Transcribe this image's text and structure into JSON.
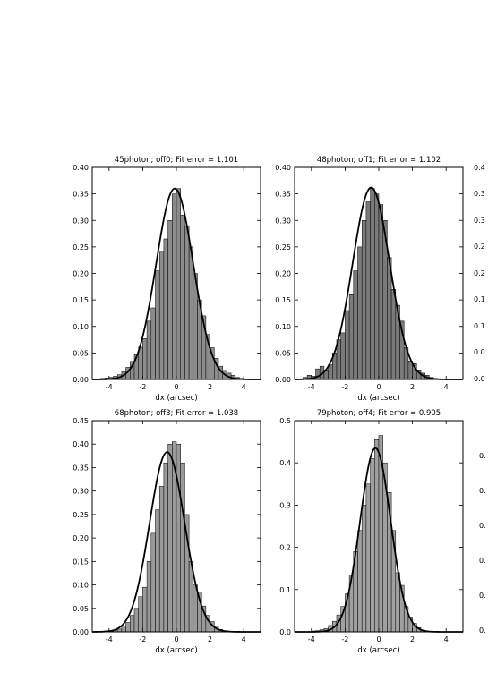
{
  "chart_data": [
    {
      "type": "bar",
      "title": "45photon; off0; Fit error = 1.101",
      "xlabel": "dx (arcsec)",
      "ylabel": "",
      "xlim": [
        -5,
        5
      ],
      "ylim": [
        0,
        0.4
      ],
      "xticks": [
        "-4",
        "-2",
        "0",
        "2",
        "4"
      ],
      "yticks": [
        "0.00",
        "0.05",
        "0.10",
        "0.15",
        "0.20",
        "0.25",
        "0.30",
        "0.35",
        "0.40"
      ],
      "bin_width": 0.25,
      "bins_start": [
        -4.5,
        -4.25,
        -4.0,
        -3.75,
        -3.5,
        -3.25,
        -3.0,
        -2.75,
        -2.5,
        -2.25,
        -2.0,
        -1.75,
        -1.5,
        -1.25,
        -1.0,
        -0.75,
        -0.5,
        -0.25,
        0.0,
        0.25,
        0.5,
        0.75,
        1.0,
        1.25,
        1.5,
        1.75,
        2.0,
        2.25,
        2.5,
        2.75,
        3.0,
        3.25,
        3.5,
        3.75
      ],
      "values": [
        0.002,
        0.003,
        0.004,
        0.006,
        0.009,
        0.015,
        0.023,
        0.034,
        0.047,
        0.061,
        0.077,
        0.11,
        0.135,
        0.205,
        0.24,
        0.265,
        0.3,
        0.35,
        0.36,
        0.31,
        0.29,
        0.25,
        0.2,
        0.15,
        0.12,
        0.085,
        0.06,
        0.04,
        0.025,
        0.017,
        0.012,
        0.008,
        0.004,
        0.002
      ],
      "fit_curve": {
        "type": "gaussian",
        "amplitude": 0.36,
        "mean": -0.1,
        "sigma": 1.1
      }
    },
    {
      "type": "bar",
      "title": "48photon; off1; Fit error = 1.102",
      "xlabel": "dx (arcsec)",
      "ylabel": "",
      "xlim": [
        -5,
        5
      ],
      "ylim": [
        0,
        0.4
      ],
      "xticks": [
        "-4",
        "-2",
        "0",
        "2",
        "4"
      ],
      "yticks": [
        "0.00",
        "0.05",
        "0.10",
        "0.15",
        "0.20",
        "0.25",
        "0.30",
        "0.35",
        "0.40"
      ],
      "bin_width": 0.25,
      "bins_start": [
        -4.5,
        -4.25,
        -4.0,
        -3.75,
        -3.5,
        -3.25,
        -3.0,
        -2.75,
        -2.5,
        -2.25,
        -2.0,
        -1.75,
        -1.5,
        -1.25,
        -1.0,
        -0.75,
        -0.5,
        -0.25,
        0.0,
        0.25,
        0.5,
        0.75,
        1.0,
        1.25,
        1.5,
        1.75,
        2.0,
        2.25,
        2.5,
        2.75,
        3.0,
        3.25
      ],
      "values": [
        0.004,
        0.008,
        0.006,
        0.02,
        0.025,
        0.018,
        0.028,
        0.05,
        0.075,
        0.088,
        0.13,
        0.16,
        0.205,
        0.25,
        0.3,
        0.335,
        0.36,
        0.35,
        0.33,
        0.3,
        0.23,
        0.17,
        0.14,
        0.11,
        0.06,
        0.035,
        0.03,
        0.018,
        0.012,
        0.008,
        0.004,
        0.002
      ],
      "fit_curve": {
        "type": "gaussian",
        "amplitude": 0.362,
        "mean": -0.45,
        "sigma": 1.1
      }
    },
    {
      "type": "bar",
      "title": "68photon; off3; Fit error = 1.038",
      "xlabel": "dx (arcsec)",
      "ylabel": "",
      "xlim": [
        -5,
        5
      ],
      "ylim": [
        0,
        0.45
      ],
      "xticks": [
        "-4",
        "-2",
        "0",
        "2",
        "4"
      ],
      "yticks": [
        "0.00",
        "0.05",
        "0.10",
        "0.15",
        "0.20",
        "0.25",
        "0.30",
        "0.35",
        "0.40",
        "0.45"
      ],
      "bin_width": 0.25,
      "bins_start": [
        -4.5,
        -4.25,
        -4.0,
        -3.75,
        -3.5,
        -3.25,
        -3.0,
        -2.75,
        -2.5,
        -2.25,
        -2.0,
        -1.75,
        -1.5,
        -1.25,
        -1.0,
        -0.75,
        -0.5,
        -0.25,
        0.0,
        0.25,
        0.5,
        0.75,
        1.0,
        1.25,
        1.5,
        1.75,
        2.0,
        2.25,
        2.5
      ],
      "values": [
        0.001,
        0.002,
        0.003,
        0.004,
        0.006,
        0.012,
        0.02,
        0.035,
        0.05,
        0.075,
        0.095,
        0.15,
        0.21,
        0.26,
        0.31,
        0.36,
        0.4,
        0.405,
        0.4,
        0.36,
        0.25,
        0.15,
        0.1,
        0.085,
        0.055,
        0.035,
        0.022,
        0.012,
        0.005
      ],
      "fit_curve": {
        "type": "gaussian",
        "amplitude": 0.383,
        "mean": -0.55,
        "sigma": 1.04
      }
    },
    {
      "type": "bar",
      "title": "79photon; off4; Fit error = 0.905",
      "xlabel": "dx (arcsec)",
      "ylabel": "",
      "xlim": [
        -5,
        5
      ],
      "ylim": [
        0,
        0.5
      ],
      "xticks": [
        "-4",
        "-2",
        "0",
        "2",
        "4"
      ],
      "yticks": [
        "0.0",
        "0.1",
        "0.2",
        "0.3",
        "0.4",
        "0.5"
      ],
      "bin_width": 0.25,
      "bins_start": [
        -4.0,
        -3.75,
        -3.5,
        -3.25,
        -3.0,
        -2.75,
        -2.5,
        -2.25,
        -2.0,
        -1.75,
        -1.5,
        -1.25,
        -1.0,
        -0.75,
        -0.5,
        -0.25,
        0.0,
        0.25,
        0.5,
        0.75,
        1.0,
        1.25,
        1.5,
        1.75,
        2.0,
        2.25,
        2.5
      ],
      "values": [
        0.002,
        0.003,
        0.005,
        0.008,
        0.015,
        0.025,
        0.04,
        0.06,
        0.09,
        0.135,
        0.19,
        0.24,
        0.3,
        0.35,
        0.41,
        0.455,
        0.465,
        0.4,
        0.33,
        0.24,
        0.14,
        0.11,
        0.06,
        0.035,
        0.02,
        0.01,
        0.004
      ],
      "fit_curve": {
        "type": "gaussian",
        "amplitude": 0.435,
        "mean": -0.2,
        "sigma": 0.905
      }
    }
  ],
  "partial_panels": {
    "top_right_yticks": [
      "0.4",
      "0.3",
      "0.3",
      "0.2",
      "0.2",
      "0.1",
      "0.1",
      "0.0",
      "0.0"
    ],
    "bottom_right_yticks": [
      "0.",
      "0.",
      "0.",
      "0.",
      "0.",
      "0.",
      "0."
    ]
  }
}
